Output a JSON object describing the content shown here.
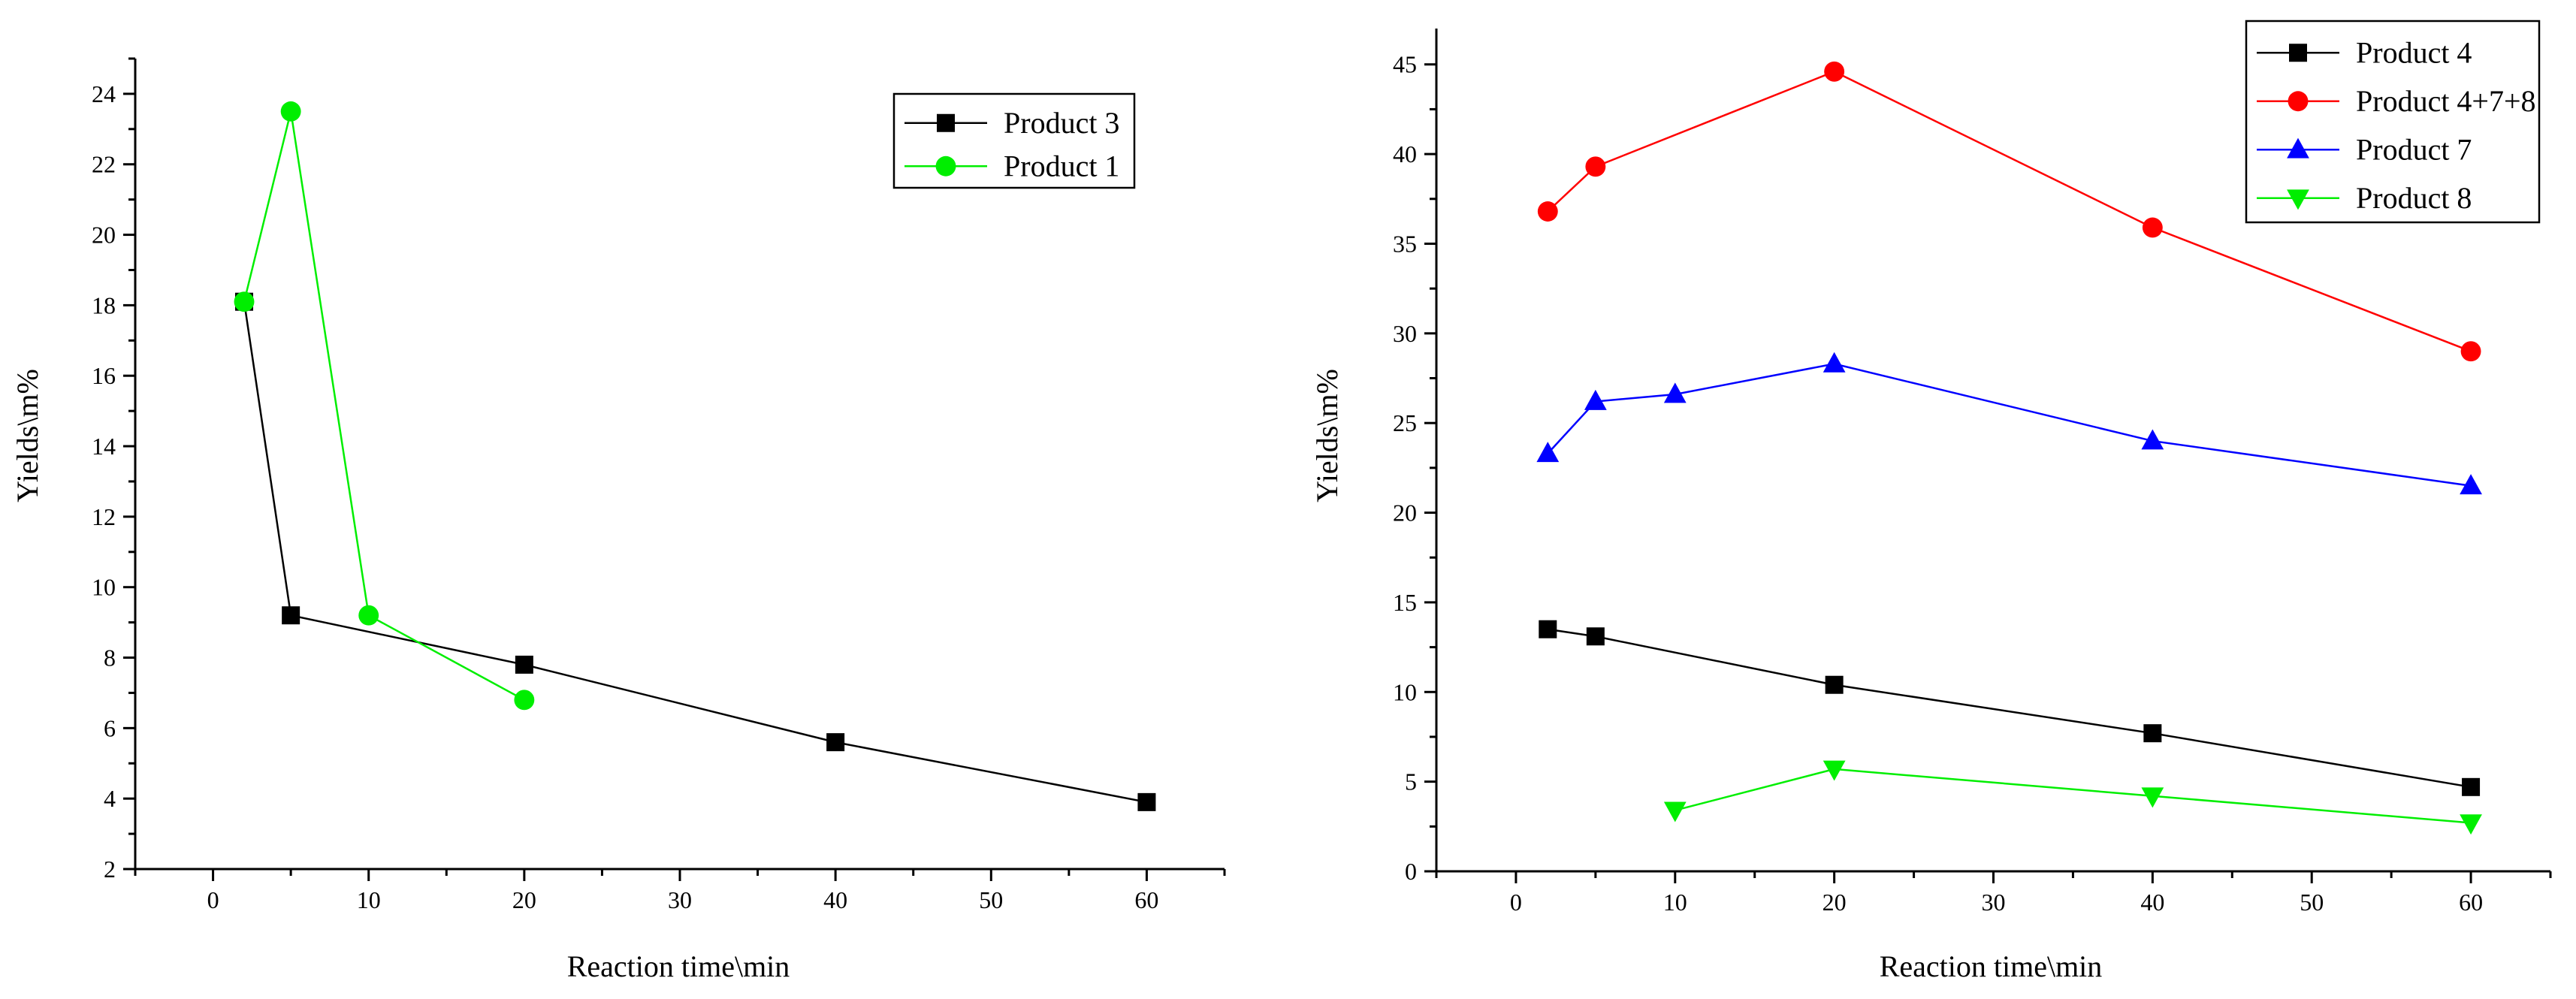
{
  "chart_data": [
    {
      "type": "line",
      "title": "",
      "xlabel": "Reaction time\\min",
      "ylabel": "Yields\\m%",
      "xlim": [
        -5,
        65
      ],
      "ylim": [
        2,
        25
      ],
      "xticks": [
        0,
        10,
        20,
        30,
        40,
        50,
        60
      ],
      "yticks": [
        2,
        4,
        6,
        8,
        10,
        12,
        14,
        16,
        18,
        20,
        22,
        24
      ],
      "legend_position": "top-right",
      "series": [
        {
          "name": "Product 3",
          "color": "#000000",
          "marker": "square",
          "x": [
            2,
            5,
            20,
            40,
            60
          ],
          "values": [
            18.1,
            9.2,
            7.8,
            5.6,
            3.9
          ]
        },
        {
          "name": "Product 1",
          "color": "#00ee00",
          "marker": "circle",
          "x": [
            2,
            5,
            10,
            20
          ],
          "values": [
            18.1,
            23.5,
            9.2,
            6.8
          ]
        }
      ]
    },
    {
      "type": "line",
      "title": "",
      "xlabel": "Reaction time\\min",
      "ylabel": "Yields\\m%",
      "xlim": [
        -5,
        65
      ],
      "ylim": [
        0,
        47
      ],
      "xticks": [
        0,
        10,
        20,
        30,
        40,
        50,
        60
      ],
      "yticks": [
        0,
        5,
        10,
        15,
        20,
        25,
        30,
        35,
        40,
        45
      ],
      "legend_position": "top-right",
      "series": [
        {
          "name": "Product 4",
          "color": "#000000",
          "marker": "square",
          "x": [
            2,
            5,
            20,
            40,
            60
          ],
          "values": [
            13.5,
            13.1,
            10.4,
            7.7,
            4.7
          ]
        },
        {
          "name": "Product 4+7+8",
          "color": "#ff0000",
          "marker": "circle",
          "x": [
            2,
            5,
            20,
            40,
            60
          ],
          "values": [
            36.8,
            39.3,
            44.6,
            35.9,
            29.0
          ]
        },
        {
          "name": "Product 7",
          "color": "#0000ff",
          "marker": "triangle-up",
          "x": [
            2,
            5,
            10,
            20,
            40,
            60
          ],
          "values": [
            23.3,
            26.2,
            26.6,
            28.3,
            24.0,
            21.5
          ]
        },
        {
          "name": "Product 8",
          "color": "#00ee00",
          "marker": "triangle-down",
          "x": [
            10,
            20,
            40,
            60
          ],
          "values": [
            3.4,
            5.7,
            4.2,
            2.7
          ]
        }
      ]
    }
  ]
}
